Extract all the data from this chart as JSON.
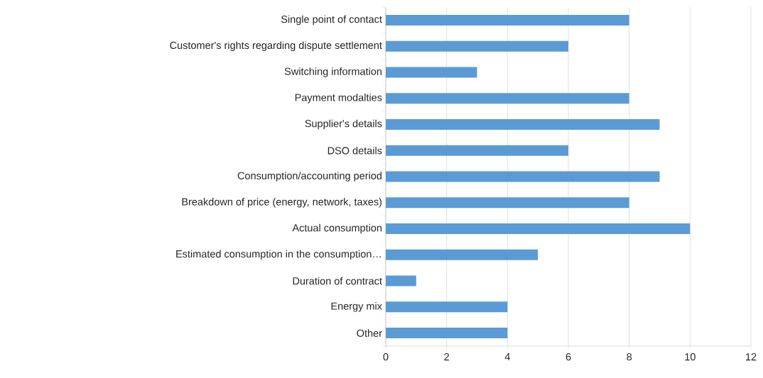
{
  "chart_data": {
    "type": "bar",
    "orientation": "horizontal",
    "categories": [
      "Single point of contact",
      "Customer's rights regarding dispute settlement",
      "Switching information",
      "Payment modalties",
      "Supplier's details",
      "DSO details",
      "Consumption/accounting period",
      "Breakdown of price (energy, network, taxes)",
      "Actual consumption",
      "Estimated consumption in the consumption…",
      "Duration of contract",
      "Energy mix",
      "Other"
    ],
    "values": [
      8,
      6,
      3,
      8,
      9,
      6,
      9,
      8,
      10,
      5,
      1,
      4,
      4
    ],
    "color": "#5b9bd5",
    "xlim": [
      0,
      12
    ],
    "xticks": [
      0,
      2,
      4,
      6,
      8,
      10,
      12
    ],
    "grid": "x"
  }
}
